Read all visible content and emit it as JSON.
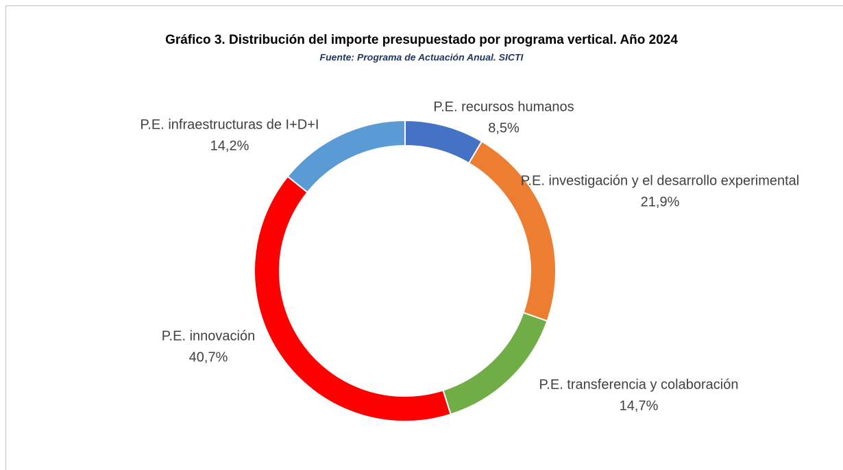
{
  "chart_data": {
    "type": "donut",
    "title": "Gráfico 3. Distribución del importe presupuestado por programa vertical. Año 2024",
    "subtitle": "Fuente: Programa de Actuación Anual. SICTI",
    "categories": [
      "P.E. recursos humanos",
      "P.E. investigación y el desarrollo experimental",
      "P.E. transferencia y colaboración",
      "P.E. innovación",
      "P.E. infraestructuras de I+D+I"
    ],
    "values": [
      8.5,
      21.9,
      14.7,
      40.7,
      14.2
    ],
    "value_labels": [
      "8,5%",
      "21,9%",
      "14,7%",
      "40,7%",
      "14,2%"
    ],
    "colors": [
      "#4472c4",
      "#ed7d31",
      "#70ad47",
      "#ff0000",
      "#5b9bd5"
    ]
  }
}
